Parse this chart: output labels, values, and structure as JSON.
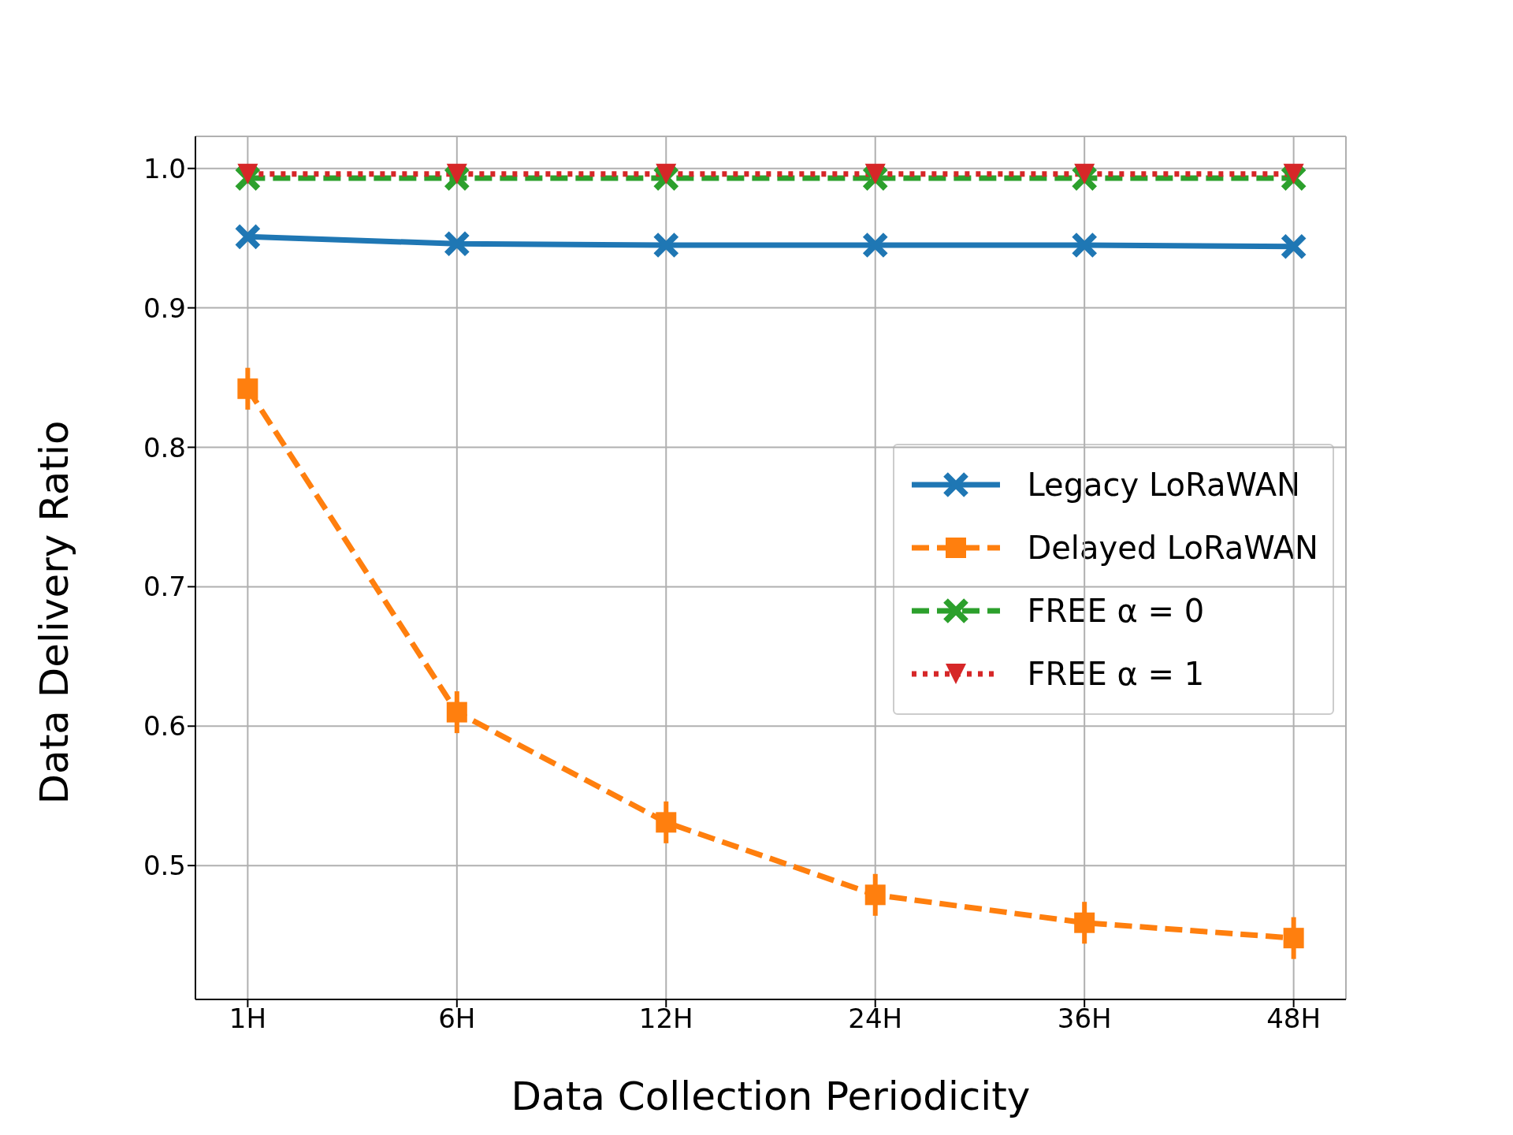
{
  "chart_data": {
    "type": "line",
    "xlabel": "Data Collection Periodicity",
    "ylabel": "Data Delivery Ratio",
    "categories": [
      "1H",
      "6H",
      "12H",
      "24H",
      "36H",
      "48H"
    ],
    "series": [
      {
        "name": "Legacy LoRaWAN",
        "color": "#1f77b4",
        "marker": "cross",
        "line_style": "solid",
        "values": [
          0.951,
          0.946,
          0.945,
          0.945,
          0.945,
          0.944
        ]
      },
      {
        "name": "Delayed LoRaWAN",
        "color": "#ff7f0e",
        "marker": "square",
        "line_style": "dashed",
        "values": [
          0.842,
          0.61,
          0.531,
          0.479,
          0.459,
          0.448
        ],
        "errors": [
          0.015,
          0.015,
          0.015,
          0.015,
          0.015,
          0.015
        ]
      },
      {
        "name": "FREE α = 0",
        "color": "#2ca02c",
        "marker": "cross",
        "line_style": "dashed",
        "values": [
          0.993,
          0.993,
          0.993,
          0.993,
          0.993,
          0.993
        ]
      },
      {
        "name": "FREE α = 1",
        "color": "#d62728",
        "marker": "triangle",
        "line_style": "dotted",
        "values": [
          0.996,
          0.996,
          0.996,
          0.996,
          0.996,
          0.996
        ]
      }
    ],
    "ylim": [
      0.404,
      1.023
    ],
    "yticks": [
      0.5,
      0.6,
      0.7,
      0.8,
      0.9,
      {
        "value": 1,
        "label": "1.0"
      }
    ],
    "grid": true,
    "legend": "right"
  }
}
